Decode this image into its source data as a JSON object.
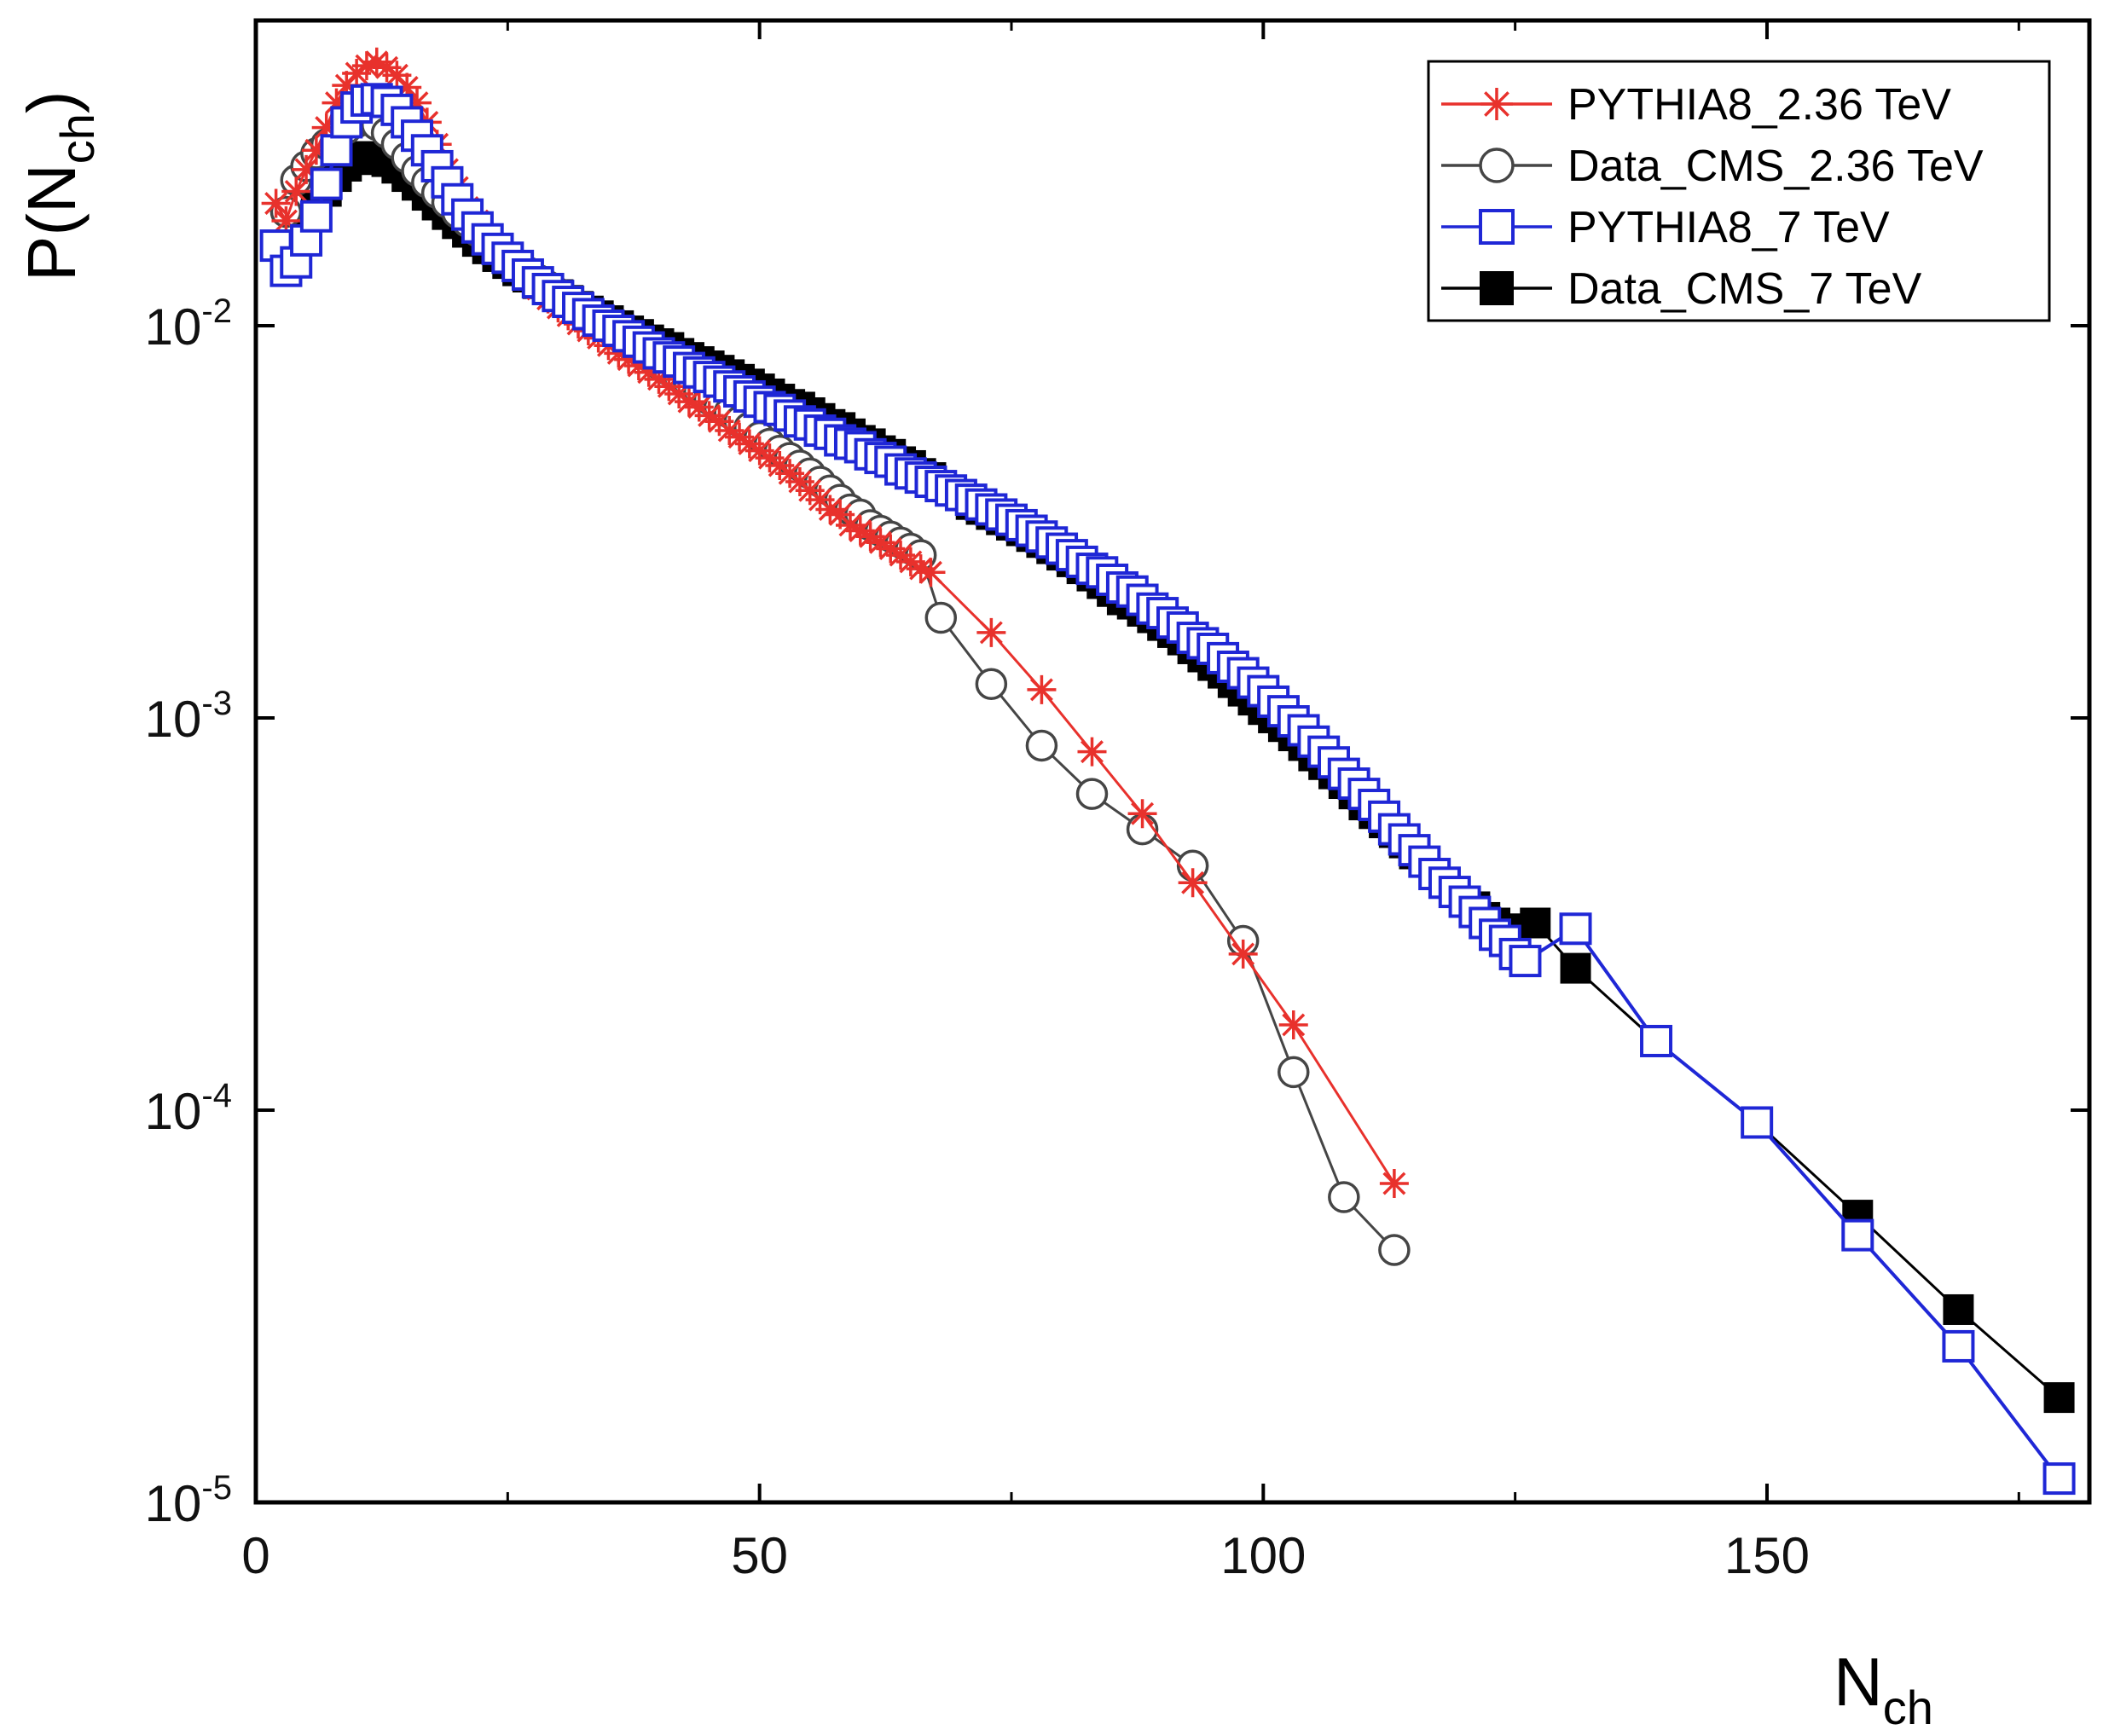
{
  "chart_data": {
    "type": "scatter",
    "title": "",
    "xlabel": {
      "base": "N",
      "sub": "ch"
    },
    "ylabel": {
      "prefix": "P(N",
      "sub": "ch",
      "suffix": ")"
    },
    "xlim": [
      0,
      182
    ],
    "ylim": [
      1e-05,
      0.06
    ],
    "yscale": "log",
    "x_ticks": [
      0,
      50,
      100,
      150
    ],
    "x_tick_labels": [
      "0",
      "50",
      "100",
      "150"
    ],
    "y_ticks": [
      1e-05,
      0.0001,
      0.001,
      0.01
    ],
    "y_tick_labels": [
      {
        "base": "10",
        "exp": "-5"
      },
      {
        "base": "10",
        "exp": "-4"
      },
      {
        "base": "10",
        "exp": "-3"
      },
      {
        "base": "10",
        "exp": "-2"
      }
    ],
    "legend_position": "top-right",
    "series": [
      {
        "name": "PYTHIA8_2.36 TeV",
        "color": "#e8312c",
        "marker": "star",
        "x": [
          2,
          3,
          4,
          5,
          6,
          7,
          8,
          9,
          10,
          11,
          12,
          13,
          14,
          15,
          16,
          17,
          18,
          19,
          20,
          21,
          22,
          23,
          24,
          25,
          26,
          27,
          28,
          29,
          30,
          31,
          32,
          33,
          34,
          35,
          36,
          37,
          38,
          39,
          40,
          41,
          42,
          43,
          44,
          45,
          46,
          47,
          48,
          49,
          50,
          51,
          52,
          53,
          54,
          55,
          56,
          57,
          58,
          59,
          60,
          61,
          62,
          63,
          64,
          65,
          66,
          67,
          73,
          78,
          83,
          88,
          93,
          98,
          103,
          113
        ],
        "y": [
          0.0205,
          0.0185,
          0.022,
          0.025,
          0.028,
          0.032,
          0.037,
          0.041,
          0.044,
          0.046,
          0.047,
          0.0455,
          0.0435,
          0.0405,
          0.037,
          0.033,
          0.029,
          0.025,
          0.0225,
          0.02,
          0.0185,
          0.017,
          0.0158,
          0.0148,
          0.0139,
          0.0131,
          0.0124,
          0.0117,
          0.0111,
          0.0106,
          0.0101,
          0.0097,
          0.0093,
          0.0089,
          0.0085,
          0.0082,
          0.0079,
          0.0076,
          0.0073,
          0.007,
          0.0067,
          0.0064,
          0.0062,
          0.0059,
          0.0057,
          0.0054,
          0.0052,
          0.005,
          0.0048,
          0.0046,
          0.0044,
          0.0042,
          0.004,
          0.0038,
          0.0036,
          0.0034,
          0.0033,
          0.0031,
          0.003,
          0.0029,
          0.0028,
          0.0027,
          0.0026,
          0.0025,
          0.0024,
          0.00235,
          0.00165,
          0.00118,
          0.00082,
          0.00057,
          0.00038,
          0.00025,
          0.000165,
          6.5e-05
        ]
      },
      {
        "name": "Data_CMS_2.36 TeV",
        "color": "#454545",
        "marker": "circle-open",
        "x": [
          3,
          4,
          5,
          6,
          7,
          8,
          9,
          10,
          11,
          12,
          13,
          14,
          15,
          16,
          17,
          18,
          19,
          20,
          21,
          22,
          23,
          24,
          25,
          26,
          27,
          28,
          29,
          30,
          31,
          32,
          33,
          34,
          35,
          36,
          37,
          38,
          39,
          40,
          41,
          42,
          43,
          44,
          45,
          46,
          47,
          48,
          49,
          50,
          51,
          52,
          53,
          54,
          55,
          56,
          57,
          58,
          59,
          60,
          61,
          62,
          63,
          64,
          65,
          66,
          68,
          73,
          78,
          83,
          88,
          93,
          98,
          103,
          108,
          113
        ],
        "y": [
          0.0195,
          0.0235,
          0.0255,
          0.0275,
          0.029,
          0.0305,
          0.0318,
          0.033,
          0.0335,
          0.0325,
          0.031,
          0.029,
          0.0268,
          0.0248,
          0.0232,
          0.0218,
          0.0206,
          0.0194,
          0.0184,
          0.0174,
          0.0165,
          0.0157,
          0.015,
          0.0143,
          0.0137,
          0.0131,
          0.0126,
          0.0121,
          0.0116,
          0.0112,
          0.0107,
          0.0103,
          0.0099,
          0.0095,
          0.0091,
          0.0087,
          0.0084,
          0.008,
          0.0077,
          0.0074,
          0.0071,
          0.0068,
          0.0065,
          0.0062,
          0.006,
          0.0057,
          0.0055,
          0.0052,
          0.005,
          0.0048,
          0.0046,
          0.0044,
          0.0042,
          0.004,
          0.0038,
          0.0036,
          0.0034,
          0.0033,
          0.0031,
          0.003,
          0.0029,
          0.0028,
          0.0027,
          0.0026,
          0.0018,
          0.00122,
          0.00085,
          0.00064,
          0.00052,
          0.00042,
          0.00027,
          0.000125,
          6e-05,
          4.4e-05
        ]
      },
      {
        "name": "PYTHIA8_7 TeV",
        "color": "#1f27d6",
        "marker": "square-open",
        "x": [
          2,
          3,
          4,
          5,
          6,
          7,
          8,
          9,
          10,
          11,
          12,
          13,
          14,
          15,
          16,
          17,
          18,
          19,
          20,
          21,
          22,
          23,
          24,
          25,
          26,
          27,
          28,
          29,
          30,
          31,
          32,
          33,
          34,
          35,
          36,
          37,
          38,
          39,
          40,
          41,
          42,
          43,
          44,
          45,
          46,
          47,
          48,
          49,
          50,
          51,
          52,
          53,
          54,
          55,
          56,
          57,
          58,
          59,
          60,
          61,
          62,
          63,
          64,
          65,
          66,
          67,
          68,
          69,
          70,
          71,
          72,
          73,
          74,
          75,
          76,
          77,
          78,
          79,
          80,
          81,
          82,
          83,
          84,
          85,
          86,
          87,
          88,
          89,
          90,
          91,
          92,
          93,
          94,
          95,
          96,
          97,
          98,
          99,
          100,
          101,
          102,
          103,
          104,
          105,
          106,
          107,
          108,
          109,
          110,
          111,
          112,
          113,
          114,
          115,
          116,
          117,
          118,
          119,
          120,
          121,
          122,
          123,
          124,
          125,
          126,
          131,
          139,
          149,
          159,
          169,
          179
        ],
        "y": [
          0.016,
          0.0138,
          0.0145,
          0.0165,
          0.019,
          0.023,
          0.028,
          0.033,
          0.036,
          0.0375,
          0.0378,
          0.0372,
          0.0355,
          0.033,
          0.0305,
          0.028,
          0.0255,
          0.0232,
          0.021,
          0.0192,
          0.0178,
          0.0166,
          0.0157,
          0.0149,
          0.0142,
          0.0135,
          0.0129,
          0.0124,
          0.0119,
          0.0115,
          0.0111,
          0.0107,
          0.0103,
          0.01,
          0.0097,
          0.0094,
          0.0091,
          0.0088,
          0.0085,
          0.0083,
          0.0081,
          0.0078,
          0.0076,
          0.0074,
          0.0072,
          0.007,
          0.0068,
          0.0066,
          0.0064,
          0.0062,
          0.0061,
          0.0059,
          0.0057,
          0.0056,
          0.0054,
          0.0053,
          0.0051,
          0.005,
          0.0049,
          0.0047,
          0.0046,
          0.0045,
          0.0043,
          0.0042,
          0.0041,
          0.004,
          0.0039,
          0.0038,
          0.0037,
          0.0036,
          0.0035,
          0.0034,
          0.0033,
          0.0032,
          0.0031,
          0.003,
          0.0029,
          0.0028,
          0.0027,
          0.0026,
          0.0025,
          0.0024,
          0.00235,
          0.00225,
          0.00215,
          0.0021,
          0.002,
          0.0019,
          0.00185,
          0.00175,
          0.0017,
          0.0016,
          0.00155,
          0.0015,
          0.00142,
          0.00135,
          0.0013,
          0.00123,
          0.00117,
          0.0011,
          0.00104,
          0.00098,
          0.00093,
          0.00087,
          0.00082,
          0.00077,
          0.00072,
          0.00068,
          0.00064,
          0.0006,
          0.00056,
          0.00052,
          0.00049,
          0.00046,
          0.00043,
          0.0004,
          0.00038,
          0.00036,
          0.00034,
          0.00032,
          0.0003,
          0.00028,
          0.00027,
          0.00025,
          0.00024,
          0.00029,
          0.00015,
          9.3e-05,
          4.8e-05,
          2.5e-05,
          1.15e-05
        ]
      },
      {
        "name": "Data_CMS_7 TeV",
        "color": "#000000",
        "marker": "square-filled",
        "x": [
          5,
          6,
          7,
          8,
          9,
          10,
          11,
          12,
          13,
          14,
          15,
          16,
          17,
          18,
          19,
          20,
          21,
          22,
          23,
          24,
          25,
          26,
          27,
          28,
          29,
          30,
          31,
          32,
          33,
          34,
          35,
          36,
          37,
          38,
          39,
          40,
          41,
          42,
          43,
          44,
          45,
          46,
          47,
          48,
          49,
          50,
          51,
          52,
          53,
          54,
          55,
          56,
          57,
          58,
          59,
          60,
          61,
          62,
          63,
          64,
          65,
          66,
          67,
          68,
          69,
          70,
          71,
          72,
          73,
          74,
          75,
          76,
          77,
          78,
          79,
          80,
          81,
          82,
          83,
          84,
          85,
          86,
          87,
          88,
          89,
          90,
          91,
          92,
          93,
          94,
          95,
          96,
          97,
          98,
          99,
          100,
          101,
          102,
          103,
          104,
          105,
          106,
          107,
          108,
          109,
          110,
          111,
          112,
          113,
          114,
          115,
          116,
          117,
          118,
          119,
          120,
          121,
          122,
          123,
          124,
          127,
          131,
          139,
          149,
          159,
          169,
          179
        ],
        "y": [
          0.018,
          0.02,
          0.022,
          0.024,
          0.0255,
          0.0265,
          0.027,
          0.0268,
          0.0262,
          0.0252,
          0.024,
          0.0228,
          0.0215,
          0.0203,
          0.0192,
          0.0182,
          0.0173,
          0.0164,
          0.0157,
          0.015,
          0.0144,
          0.0138,
          0.0133,
          0.0128,
          0.0124,
          0.012,
          0.0116,
          0.0112,
          0.0109,
          0.0106,
          0.0103,
          0.01,
          0.0097,
          0.0095,
          0.0092,
          0.009,
          0.0088,
          0.0085,
          0.0083,
          0.0081,
          0.0079,
          0.0077,
          0.0075,
          0.0073,
          0.0071,
          0.0069,
          0.0067,
          0.0065,
          0.0063,
          0.0062,
          0.006,
          0.0058,
          0.0056,
          0.0055,
          0.0053,
          0.0051,
          0.005,
          0.0048,
          0.0047,
          0.0045,
          0.0044,
          0.0042,
          0.0041,
          0.0039,
          0.0038,
          0.0037,
          0.0035,
          0.0034,
          0.0033,
          0.0032,
          0.0031,
          0.003,
          0.0029,
          0.0028,
          0.0027,
          0.0026,
          0.0025,
          0.0024,
          0.0023,
          0.0022,
          0.0021,
          0.002,
          0.00195,
          0.00187,
          0.0018,
          0.00172,
          0.00165,
          0.00158,
          0.0015,
          0.00143,
          0.00136,
          0.0013,
          0.00123,
          0.00117,
          0.00111,
          0.00105,
          0.001,
          0.00095,
          0.0009,
          0.00085,
          0.0008,
          0.00076,
          0.00072,
          0.00068,
          0.00064,
          0.0006,
          0.00057,
          0.00054,
          0.00051,
          0.00048,
          0.00045,
          0.00043,
          0.0004,
          0.00038,
          0.00036,
          0.00034,
          0.00033,
          0.00031,
          0.0003,
          0.00029,
          0.0003,
          0.00023,
          0.00015,
          9.3e-05,
          5.4e-05,
          3.1e-05,
          1.85e-05
        ]
      }
    ]
  }
}
